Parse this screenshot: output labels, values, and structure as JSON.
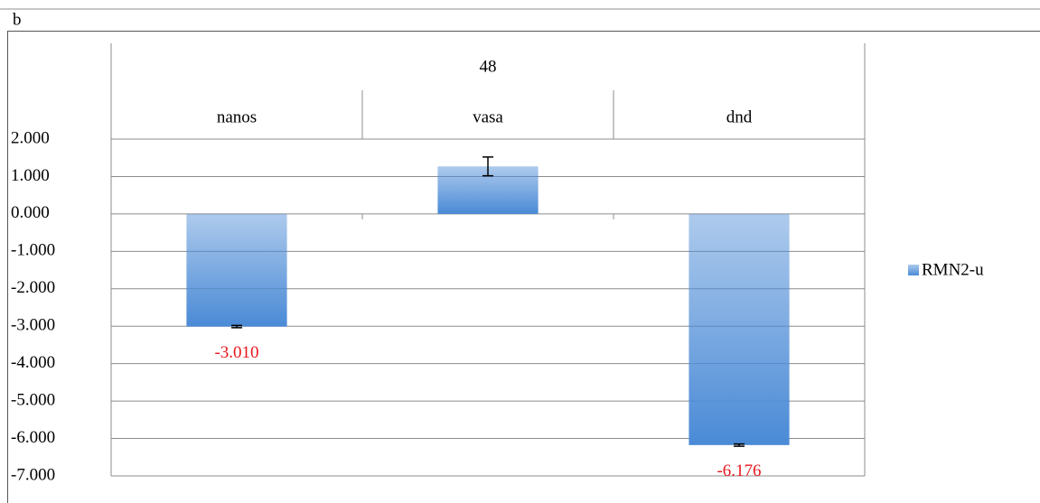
{
  "chart_data": {
    "type": "bar",
    "panel_label": "b",
    "group_label": "48",
    "categories": [
      "nanos",
      "vasa",
      "dnd"
    ],
    "series": [
      {
        "name": "RMN2-u",
        "color": "#4a8ad6",
        "values": [
          -3.01,
          1.27,
          -6.176
        ],
        "errors": [
          0.03,
          0.25,
          0.03
        ],
        "value_labels": [
          "-3.010",
          null,
          "-6.176"
        ],
        "value_label_color": "#e8171c"
      }
    ],
    "ylim": [
      -7,
      2
    ],
    "yticks": [
      {
        "value": 2,
        "label": "2.000"
      },
      {
        "value": 1,
        "label": "1.000"
      },
      {
        "value": 0,
        "label": "0.000"
      },
      {
        "value": -1,
        "label": "-1.000"
      },
      {
        "value": -2,
        "label": "-2.000"
      },
      {
        "value": -3,
        "label": "-3.000"
      },
      {
        "value": -4,
        "label": "-4.000"
      },
      {
        "value": -5,
        "label": "-5.000"
      },
      {
        "value": -6,
        "label": "-6.000"
      },
      {
        "value": -7,
        "label": "-7.000"
      }
    ],
    "grid": true,
    "legend": "right"
  }
}
